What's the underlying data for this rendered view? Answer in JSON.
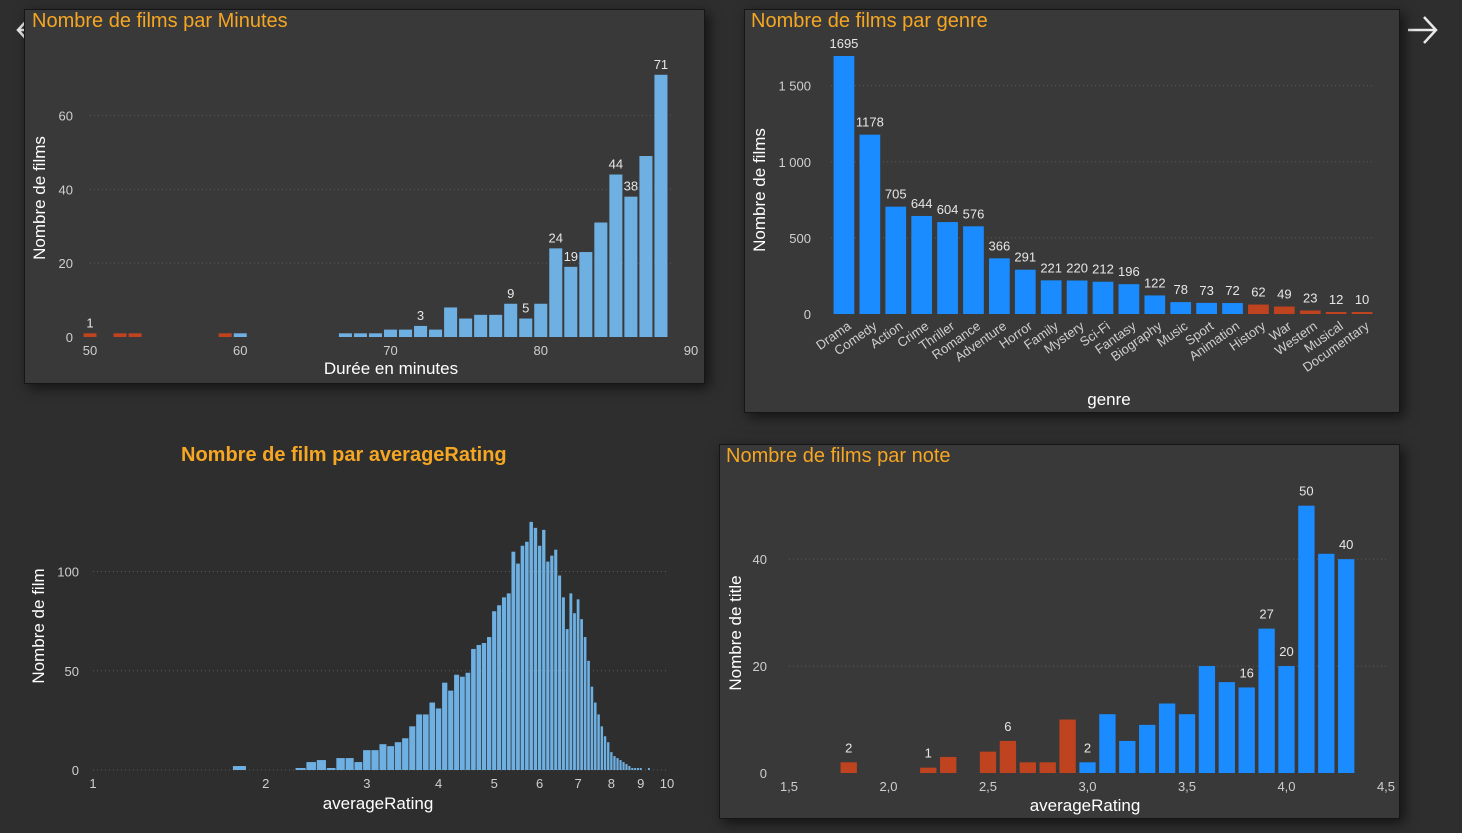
{
  "nav": {
    "prev_icon": "arrow-left-icon",
    "next_icon": "arrow-right-icon"
  },
  "colors": {
    "blue_light": "#6fb0e3",
    "blue": "#1a8cff",
    "red": "#c0431f",
    "title": "#f5a623",
    "panel_bg": "#393939"
  },
  "chart_data": [
    {
      "id": "minutes",
      "type": "bar",
      "title": "Nombre de films par Minutes",
      "xlabel": "Durée en minutes",
      "ylabel": "Nombre de films",
      "xlim": [
        50,
        90
      ],
      "ylim": [
        0,
        75
      ],
      "x_ticks": [
        "50",
        "60",
        "70",
        "80",
        "90"
      ],
      "y_ticks": [
        "0",
        "20",
        "40",
        "60"
      ],
      "grid": true,
      "points": [
        {
          "x": 50,
          "y": 1,
          "label": "1",
          "color": "red"
        },
        {
          "x": 52,
          "y": 1,
          "color": "red"
        },
        {
          "x": 53,
          "y": 1,
          "color": "red"
        },
        {
          "x": 59,
          "y": 1,
          "color": "red"
        },
        {
          "x": 60,
          "y": 1,
          "color": "blue"
        },
        {
          "x": 67,
          "y": 1,
          "color": "blue"
        },
        {
          "x": 68,
          "y": 1,
          "color": "blue"
        },
        {
          "x": 69,
          "y": 1,
          "color": "blue"
        },
        {
          "x": 70,
          "y": 2,
          "color": "blue"
        },
        {
          "x": 71,
          "y": 2,
          "color": "blue"
        },
        {
          "x": 72,
          "y": 3,
          "label": "3",
          "color": "blue"
        },
        {
          "x": 73,
          "y": 2,
          "color": "blue"
        },
        {
          "x": 74,
          "y": 8,
          "color": "blue"
        },
        {
          "x": 75,
          "y": 5,
          "color": "blue"
        },
        {
          "x": 76,
          "y": 6,
          "color": "blue"
        },
        {
          "x": 77,
          "y": 6,
          "color": "blue"
        },
        {
          "x": 78,
          "y": 9,
          "label": "9",
          "color": "blue"
        },
        {
          "x": 79,
          "y": 5,
          "label": "5",
          "color": "blue"
        },
        {
          "x": 80,
          "y": 9,
          "color": "blue"
        },
        {
          "x": 81,
          "y": 24,
          "label": "24",
          "color": "blue"
        },
        {
          "x": 82,
          "y": 19,
          "label": "19",
          "color": "blue"
        },
        {
          "x": 83,
          "y": 23,
          "color": "blue"
        },
        {
          "x": 84,
          "y": 31,
          "color": "blue"
        },
        {
          "x": 85,
          "y": 44,
          "label": "44",
          "color": "blue"
        },
        {
          "x": 86,
          "y": 38,
          "label": "38",
          "color": "blue"
        },
        {
          "x": 87,
          "y": 49,
          "color": "blue"
        },
        {
          "x": 88,
          "y": 71,
          "label": "71",
          "color": "blue"
        }
      ]
    },
    {
      "id": "genre",
      "type": "bar",
      "title": "Nombre de films par genre",
      "xlabel": "genre",
      "ylabel": "Nombre de films",
      "ylim": [
        0,
        1800
      ],
      "y_ticks": [
        {
          "v": 0,
          "t": "0"
        },
        {
          "v": 500,
          "t": "500"
        },
        {
          "v": 1000,
          "t": "1 000"
        },
        {
          "v": 1500,
          "t": "1 500"
        }
      ],
      "grid": true,
      "categories": [
        "Drama",
        "Comedy",
        "Action",
        "Crime",
        "Thriller",
        "Romance",
        "Adventure",
        "Horror",
        "Family",
        "Mystery",
        "Sci-Fi",
        "Fantasy",
        "Biography",
        "Music",
        "Sport",
        "Animation",
        "History",
        "War",
        "Western",
        "Musical",
        "Documentary"
      ],
      "values": [
        1695,
        1178,
        705,
        644,
        604,
        576,
        366,
        291,
        221,
        220,
        212,
        196,
        122,
        78,
        73,
        72,
        62,
        49,
        23,
        12,
        10
      ],
      "colors": [
        "blue",
        "blue",
        "blue",
        "blue",
        "blue",
        "blue",
        "blue",
        "blue",
        "blue",
        "blue",
        "blue",
        "blue",
        "blue",
        "blue",
        "blue",
        "blue",
        "red",
        "red",
        "red",
        "red",
        "red"
      ]
    },
    {
      "id": "rating_hist",
      "type": "bar",
      "title": "Nombre de film par averageRating",
      "xlabel": "averageRating",
      "ylabel": "Nombre de film",
      "x_scale": "log",
      "xlim": [
        1,
        10
      ],
      "ylim": [
        0,
        130
      ],
      "x_ticks": [
        "1",
        "2",
        "3",
        "4",
        "5",
        "6",
        "7",
        "8",
        "9",
        "10"
      ],
      "y_ticks": [
        "0",
        "50",
        "100"
      ],
      "grid": true,
      "x": [
        1.8,
        2.3,
        2.4,
        2.5,
        2.6,
        2.7,
        2.8,
        2.9,
        3.0,
        3.1,
        3.2,
        3.3,
        3.4,
        3.5,
        3.6,
        3.7,
        3.8,
        3.9,
        4.0,
        4.1,
        4.2,
        4.3,
        4.4,
        4.5,
        4.6,
        4.7,
        4.8,
        4.9,
        5.0,
        5.1,
        5.2,
        5.3,
        5.4,
        5.5,
        5.6,
        5.7,
        5.8,
        5.9,
        6.0,
        6.1,
        6.2,
        6.3,
        6.4,
        6.5,
        6.6,
        6.7,
        6.8,
        6.9,
        7.0,
        7.1,
        7.2,
        7.3,
        7.4,
        7.5,
        7.6,
        7.7,
        7.8,
        7.9,
        8.0,
        8.1,
        8.2,
        8.3,
        8.4,
        8.5,
        8.6,
        8.7,
        8.8,
        8.9,
        9.0,
        9.3
      ],
      "values": [
        2,
        1,
        4,
        5,
        1,
        6,
        6,
        4,
        10,
        10,
        13,
        12,
        14,
        16,
        22,
        28,
        28,
        34,
        31,
        44,
        40,
        48,
        47,
        49,
        61,
        63,
        64,
        67,
        80,
        83,
        87,
        89,
        110,
        104,
        113,
        115,
        125,
        122,
        113,
        121,
        105,
        108,
        111,
        98,
        87,
        71,
        89,
        79,
        86,
        76,
        67,
        55,
        42,
        34,
        28,
        22,
        17,
        14,
        9,
        7,
        6,
        5,
        4,
        3,
        2,
        1,
        1,
        1,
        1,
        1
      ]
    },
    {
      "id": "note",
      "type": "bar",
      "title": "Nombre de films par note",
      "xlabel": "averageRating",
      "ylabel": "Nombre de title",
      "xlim": [
        1.5,
        4.5
      ],
      "ylim": [
        0,
        52
      ],
      "x_ticks": [
        "1,5",
        "2,0",
        "2,5",
        "3,0",
        "3,5",
        "4,0",
        "4,5"
      ],
      "y_ticks": [
        "0",
        "20",
        "40"
      ],
      "grid": true,
      "points": [
        {
          "x": 1.8,
          "y": 2,
          "label": "2",
          "color": "red"
        },
        {
          "x": 2.2,
          "y": 1,
          "label": "1",
          "color": "red"
        },
        {
          "x": 2.3,
          "y": 3,
          "color": "red"
        },
        {
          "x": 2.5,
          "y": 4,
          "color": "red"
        },
        {
          "x": 2.6,
          "y": 6,
          "label": "6",
          "color": "red"
        },
        {
          "x": 2.7,
          "y": 2,
          "color": "red"
        },
        {
          "x": 2.8,
          "y": 2,
          "color": "red"
        },
        {
          "x": 2.9,
          "y": 10,
          "color": "red"
        },
        {
          "x": 3.0,
          "y": 2,
          "label": "2",
          "color": "blue"
        },
        {
          "x": 3.1,
          "y": 11,
          "color": "blue"
        },
        {
          "x": 3.2,
          "y": 6,
          "color": "blue"
        },
        {
          "x": 3.3,
          "y": 9,
          "color": "blue"
        },
        {
          "x": 3.4,
          "y": 13,
          "color": "blue"
        },
        {
          "x": 3.5,
          "y": 11,
          "color": "blue"
        },
        {
          "x": 3.6,
          "y": 20,
          "color": "blue"
        },
        {
          "x": 3.7,
          "y": 17,
          "color": "blue"
        },
        {
          "x": 3.8,
          "y": 16,
          "label": "16",
          "color": "blue"
        },
        {
          "x": 3.9,
          "y": 27,
          "label": "27",
          "color": "blue"
        },
        {
          "x": 4.0,
          "y": 20,
          "label": "20",
          "color": "blue"
        },
        {
          "x": 4.1,
          "y": 50,
          "label": "50",
          "color": "blue"
        },
        {
          "x": 4.2,
          "y": 41,
          "color": "blue"
        },
        {
          "x": 4.3,
          "y": 40,
          "label": "40",
          "color": "blue"
        }
      ]
    }
  ]
}
